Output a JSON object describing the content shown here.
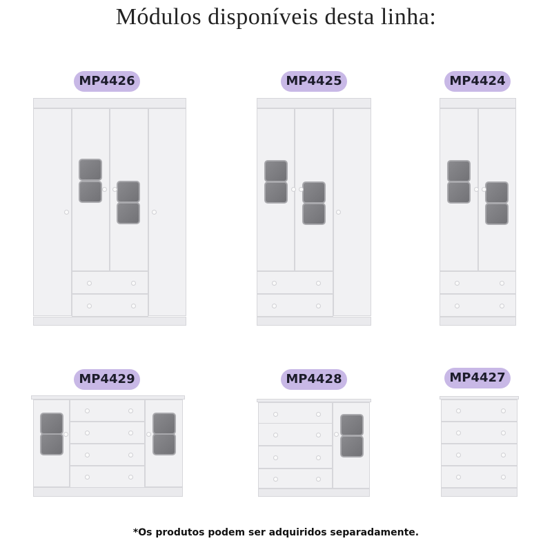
{
  "title": "Módulos disponíveis desta linha:",
  "modules": [
    {
      "code": "MP4426",
      "type": "wardrobe-4-doors-2-drawers"
    },
    {
      "code": "MP4425",
      "type": "wardrobe-3-doors-2-drawers"
    },
    {
      "code": "MP4424",
      "type": "wardrobe-2-doors-2-drawers"
    },
    {
      "code": "MP4429",
      "type": "dresser-2-doors-4-drawers"
    },
    {
      "code": "MP4428",
      "type": "dresser-1-door-4-drawers"
    },
    {
      "code": "MP4427",
      "type": "chest-4-drawers"
    }
  ],
  "footnote": "*Os produtos podem ser adquiridos separadamente.",
  "colors": {
    "label_bg": "#c8b8e6",
    "furniture": "#f1f1f3",
    "glass": "#7c7c80"
  }
}
